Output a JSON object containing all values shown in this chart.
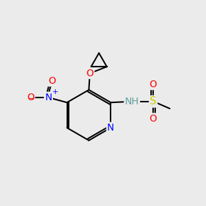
{
  "bg_color": "#ebebeb",
  "bond_color": "#000000",
  "bond_width": 1.5,
  "atom_colors": {
    "N": "#0000ff",
    "O": "#ff0000",
    "S": "#cccc00",
    "H": "#5f9ea0",
    "C": "#000000"
  },
  "font_size": 10,
  "fig_size": [
    3.0,
    3.0
  ],
  "dpi": 100
}
